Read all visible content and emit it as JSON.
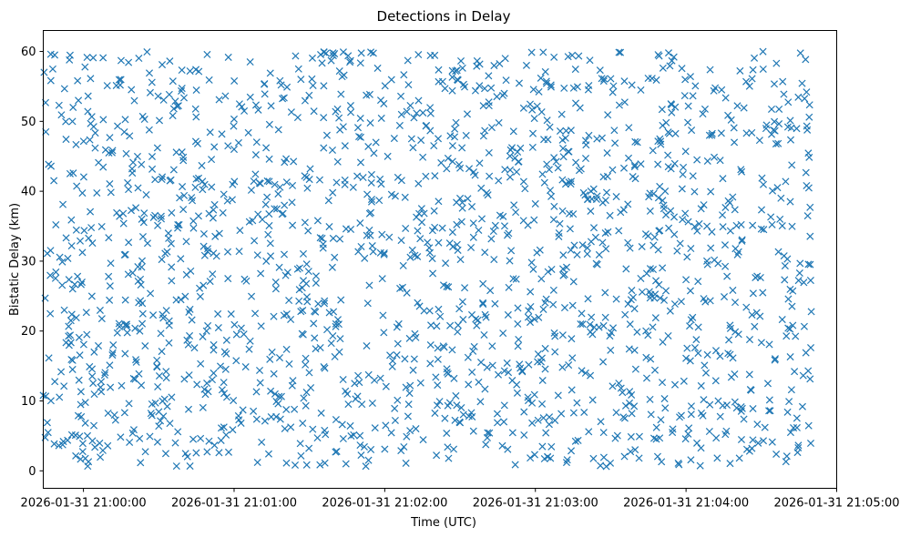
{
  "chart_data": {
    "type": "scatter",
    "title": "Detections in Delay",
    "xlabel": "Time (UTC)",
    "ylabel": "Bistatic Delay (km)",
    "marker": "x",
    "color": "#1f77b4",
    "grid": false,
    "x_ticks": [
      "2026-01-31 21:00:00",
      "2026-01-31 21:01:00",
      "2026-01-31 21:02:00",
      "2026-01-31 21:03:00",
      "2026-01-31 21:04:00",
      "2026-01-31 21:05:00"
    ],
    "xlim": [
      "2026-01-31 20:59:44",
      "2026-01-31 21:05:00"
    ],
    "y_ticks": [
      0,
      10,
      20,
      30,
      40,
      50,
      60
    ],
    "ylim": [
      -2.5,
      63
    ],
    "x_range": [
      "2026-01-31 20:59:44",
      "2026-01-31 21:04:50"
    ],
    "y_range": [
      0.5,
      60
    ],
    "point_count_estimate": 1800,
    "series": [
      {
        "x": [
          "2026-01-31 20:59:44",
          "2026-01-31 20:59:45",
          "2026-01-31 20:59:47",
          "2026-01-31 20:59:49",
          "2026-01-31 20:59:52",
          "2026-01-31 20:59:55",
          "2026-01-31 20:59:58",
          "2026-01-31 21:00:02",
          "2026-01-31 21:00:06",
          "2026-01-31 21:00:10",
          "2026-01-31 21:00:15",
          "2026-01-31 21:00:20",
          "2026-01-31 21:00:25",
          "2026-01-31 21:00:30",
          "2026-01-31 21:00:36",
          "2026-01-31 21:00:42",
          "2026-01-31 21:00:48",
          "2026-01-31 21:00:54",
          "2026-01-31 21:01:00",
          "2026-01-31 21:01:06",
          "2026-01-31 21:01:12",
          "2026-01-31 21:01:18",
          "2026-01-31 21:01:24",
          "2026-01-31 21:01:30",
          "2026-01-31 21:01:36",
          "2026-01-31 21:01:42",
          "2026-01-31 21:01:48",
          "2026-01-31 21:01:54",
          "2026-01-31 21:02:00",
          "2026-01-31 21:02:06",
          "2026-01-31 21:02:12",
          "2026-01-31 21:02:18",
          "2026-01-31 21:02:24",
          "2026-01-31 21:02:30",
          "2026-01-31 21:02:36",
          "2026-01-31 21:02:42",
          "2026-01-31 21:02:48",
          "2026-01-31 21:02:54",
          "2026-01-31 21:03:00",
          "2026-01-31 21:03:06",
          "2026-01-31 21:03:12",
          "2026-01-31 21:03:18",
          "2026-01-31 21:03:24",
          "2026-01-31 21:03:30",
          "2026-01-31 21:03:36",
          "2026-01-31 21:03:42",
          "2026-01-31 21:03:48",
          "2026-01-31 21:03:54",
          "2026-01-31 21:04:00",
          "2026-01-31 21:04:06",
          "2026-01-31 21:04:12",
          "2026-01-31 21:04:18",
          "2026-01-31 21:04:24",
          "2026-01-31 21:04:30",
          "2026-01-31 21:04:36",
          "2026-01-31 21:04:42",
          "2026-01-31 21:04:48"
        ],
        "y": [
          10.8,
          48.5,
          59.6,
          35.2,
          4.2,
          21.5,
          53.0,
          1.3,
          44.1,
          27.8,
          58.7,
          13.2,
          39.5,
          6.4,
          51.8,
          22.7,
          33.9,
          2.6,
          46.0,
          17.4,
          55.3,
          29.1,
          8.8,
          41.7,
          24.3,
          57.2,
          12.5,
          36.8,
          3.1,
          49.4,
          19.6,
          31.2,
          54.7,
          6.9,
          42.3,
          25.8,
          59.0,
          14.7,
          38.2,
          1.8,
          47.6,
          21.0,
          33.4,
          56.1,
          9.3,
          43.9,
          27.2,
          52.5,
          16.1,
          37.5,
          4.7,
          50.2,
          23.4,
          34.6,
          58.3,
          11.6,
          40.8
        ]
      }
    ]
  }
}
